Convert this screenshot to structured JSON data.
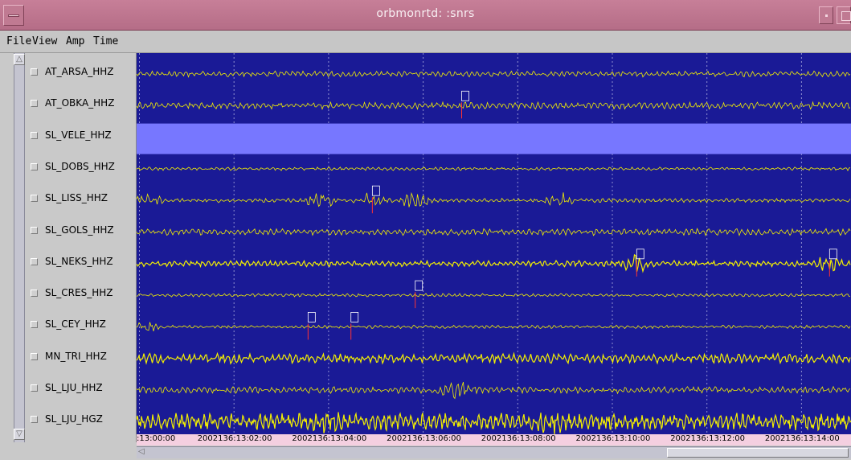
{
  "window": {
    "title": "orbmonrtd: :snrs"
  },
  "menu": {
    "file": "File",
    "view": "View",
    "amp": "Amp",
    "time": "Time"
  },
  "channels": [
    {
      "name": "AT_ARSA_HHZ",
      "style": "normal",
      "amp": 3.5,
      "picks": [],
      "bursts": []
    },
    {
      "name": "AT_OBKA_HHZ",
      "style": "normal",
      "amp": 4,
      "picks": [
        {
          "t": 0.455,
          "color": "#ff3333"
        }
      ],
      "bursts": []
    },
    {
      "name": "SL_VELE_HHZ",
      "style": "nodata",
      "amp": 0,
      "picks": [],
      "bursts": []
    },
    {
      "name": "SL_DOBS_HHZ",
      "style": "normal",
      "amp": 2,
      "picks": [],
      "bursts": []
    },
    {
      "name": "SL_LISS_HHZ",
      "style": "spiky",
      "amp": 2.5,
      "picks": [
        {
          "t": 0.33,
          "color": "#ff3333"
        }
      ],
      "bursts": [
        0.01,
        0.26,
        0.33,
        0.39,
        0.59
      ]
    },
    {
      "name": "SL_GOLS_HHZ",
      "style": "normal",
      "amp": 4,
      "picks": [],
      "bursts": []
    },
    {
      "name": "SL_NEKS_HHZ",
      "style": "thick",
      "amp": 3.5,
      "picks": [
        {
          "t": 0.7,
          "color": "#ff3333"
        },
        {
          "t": 0.97,
          "color": "#ff3333"
        }
      ],
      "bursts": [
        0.7,
        0.97
      ]
    },
    {
      "name": "SL_CRES_HHZ",
      "style": "normal",
      "amp": 2,
      "picks": [
        {
          "t": 0.39,
          "color": "#ff3333"
        }
      ],
      "bursts": []
    },
    {
      "name": "SL_CEY_HHZ",
      "style": "normal",
      "amp": 2,
      "picks": [
        {
          "t": 0.24,
          "color": "#ff3333"
        },
        {
          "t": 0.3,
          "color": "#ff3333"
        }
      ],
      "bursts": [
        0.01
      ]
    },
    {
      "name": "MN_TRI_HHZ",
      "style": "thick",
      "amp": 6,
      "picks": [],
      "bursts": []
    },
    {
      "name": "SL_LJU_HHZ",
      "style": "normal",
      "amp": 4,
      "picks": [],
      "bursts": [
        0.45
      ]
    },
    {
      "name": "SL_LJU_HGZ",
      "style": "heavy",
      "amp": 10,
      "picks": [],
      "bursts": [
        0.26,
        0.58
      ]
    }
  ],
  "time_axis": {
    "ticks": [
      ":13:00:00",
      "2002136:13:02:00",
      "2002136:13:04:00",
      "2002136:13:06:00",
      "2002136:13:08:00",
      "2002136:13:10:00",
      "2002136:13:12:00",
      "2002136:13:14:00"
    ]
  },
  "colors": {
    "background": "#1a1a96",
    "trace": "#f4f000",
    "nodata": "#7777ff",
    "grid": "#8f8fd0",
    "pick": "#ff3333",
    "pick_box": "#ffffff",
    "time_axis_bg": "#f4cfe0"
  },
  "icons": {
    "window_menu": "window-menu-icon",
    "scroll_up": "scroll-up-arrow-icon",
    "scroll_down": "scroll-down-arrow-icon",
    "scroll_left": "scroll-left-arrow-icon"
  }
}
